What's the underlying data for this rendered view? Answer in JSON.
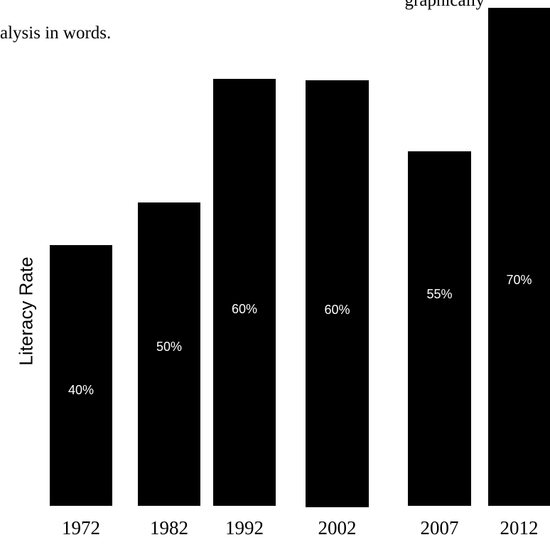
{
  "question": {
    "line1_visible": "graphically",
    "line2_visible": "alysis in words."
  },
  "chart_data": {
    "type": "bar",
    "ylabel": "Literacy Rate",
    "xlabel": "",
    "categories": [
      "1972",
      "1982",
      "1992",
      "2002",
      "2007",
      "2012"
    ],
    "values": [
      40,
      50,
      60,
      60,
      55,
      70
    ],
    "data_labels": [
      "40%",
      "50%",
      "60%",
      "60%",
      "55%",
      "70%"
    ],
    "bar_color": "#000000",
    "label_color": "#ffffff",
    "grid": false,
    "legend": "none"
  }
}
